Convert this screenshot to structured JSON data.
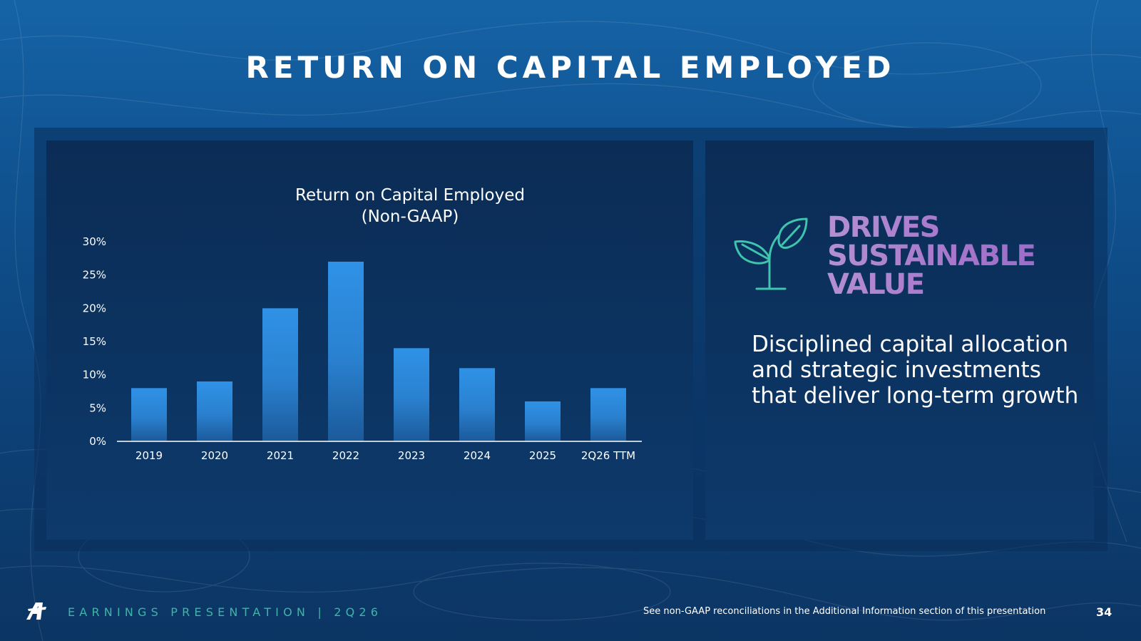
{
  "slide": {
    "title": "RETURN ON CAPITAL EMPLOYED",
    "page_number": "34"
  },
  "chart_data": {
    "type": "bar",
    "title_line1": "Return on Capital Employed",
    "title_line2": "(Non-GAAP)",
    "categories": [
      "2019",
      "2020",
      "2021",
      "2022",
      "2023",
      "2024",
      "2025",
      "2Q26 TTM"
    ],
    "values": [
      8,
      9,
      20,
      27,
      14,
      11,
      6,
      8
    ],
    "y_ticks": [
      "0%",
      "5%",
      "10%",
      "15%",
      "20%",
      "25%",
      "30%"
    ],
    "y_tick_values": [
      0,
      5,
      10,
      15,
      20,
      25,
      30
    ],
    "ylim": [
      0,
      30
    ],
    "grid": false,
    "bar_color_top": "#2f92e6",
    "bar_color_bottom": "#1b5a9a"
  },
  "callout": {
    "heading_lines": [
      "DRIVES",
      "SUSTAINABLE",
      "VALUE"
    ],
    "body": "Disciplined capital allocation and strategic investments that deliver long-term growth",
    "icon": "sprout-icon",
    "heading_color": "#a67ac9",
    "icon_color": "#3fc4ae"
  },
  "footer": {
    "left_text": "EARNINGS PRESENTATION  |  2Q26",
    "note": "See non-GAAP reconciliations in the Additional Information section of this presentation",
    "logo": "airline-logo-icon"
  }
}
